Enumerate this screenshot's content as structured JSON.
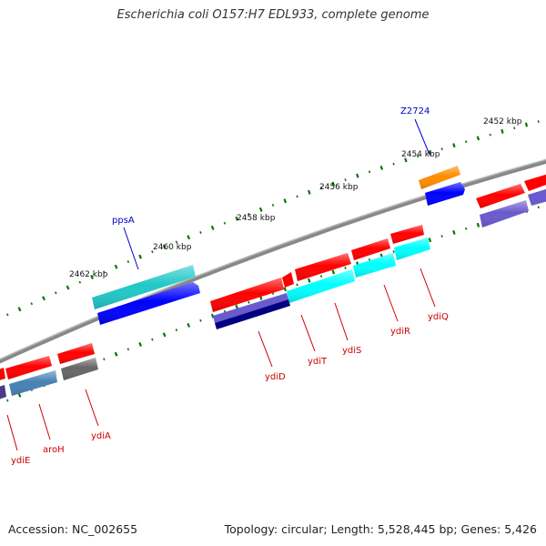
{
  "title": "Escherichia coli O157:H7 EDL933, complete genome",
  "footer": {
    "accession": "Accession: NC_002655",
    "topology": "Topology: circular; Length: 5,528,445 bp; Genes: 5,426"
  },
  "ticks": [
    "2452 kbp",
    "2454 kbp",
    "2456 kbp",
    "2458 kbp",
    "2460 kbp",
    "2462 kbp"
  ],
  "labels": {
    "Z2724": "Z2724",
    "ppsA": "ppsA",
    "ydiD": "ydiD",
    "ydiT": "ydiT",
    "ydiS": "ydiS",
    "ydiR": "ydiR",
    "ydiQ": "ydiQ",
    "ydiE": "ydiE",
    "aroH": "aroH",
    "ydiA": "ydiA"
  },
  "colors": {
    "red": "#ff0000",
    "cyan": "#00ffff",
    "teal": "#20c8c8",
    "blue": "#0000ff",
    "navy": "#000080",
    "slate": "#6a5acd",
    "steel": "#4682b4",
    "gray": "#666666",
    "orange": "#ff8c00",
    "tick_green": "#007700",
    "label_red": "#cc0000",
    "label_blue": "#0000cc"
  }
}
